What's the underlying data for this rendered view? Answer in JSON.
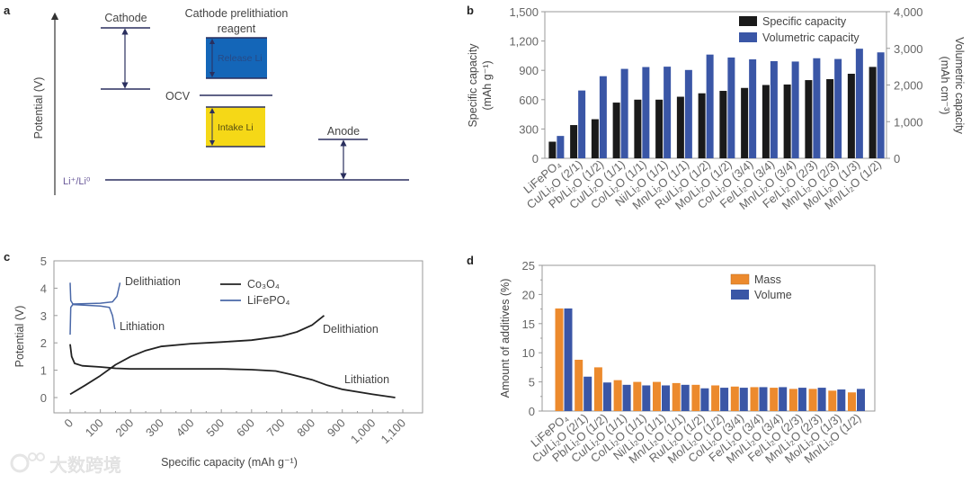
{
  "panel_labels": [
    "a",
    "b",
    "c",
    "d"
  ],
  "watermark": "大数跨境",
  "colors": {
    "black_bar": "#1a1a1a",
    "blue_bar": "#3a56a6",
    "orange_bar": "#ec8a2d",
    "release_box": "#1466b8",
    "intake_box": "#f5d817",
    "arrow": "#2a2f5e",
    "lifepo4_line": "#4a68a8",
    "right_axis": "#5a6fa8"
  },
  "diagram_a": {
    "ylabel": "Potential (V)",
    "cathode": "Cathode",
    "reagent_line1": "Cathode prelithiation",
    "reagent_line2": "reagent",
    "release": "Release Li",
    "intake": "Intake Li",
    "ocv": "OCV",
    "anode": "Anode",
    "reference": "Li⁺/Li⁰"
  },
  "chart_data": [
    {
      "panel": "b",
      "type": "bar",
      "categories": [
        "LiFePO₄",
        "Cu/Li₂O (2/1)",
        "Pb/Li₂O (1/2)",
        "Cu/Li₂O (1/1)",
        "Co/Li₂O (1/1)",
        "Ni/Li₂O (1/1)",
        "Mn/Li₂O (1/1)",
        "Ru/Li₂O (1/2)",
        "Mo/Li₂O (1/2)",
        "Co/Li₂O (3/4)",
        "Fe/Li₂O (3/4)",
        "Mn/Li₂O (3/4)",
        "Fe/Li₂O (2/3)",
        "Mn/Li₂O (2/3)",
        "Mo/Li₂O (1/3)",
        "Mn/Li₂O (1/2)"
      ],
      "series": [
        {
          "name": "Specific capacity",
          "axis": "left",
          "values": [
            170,
            340,
            400,
            570,
            600,
            600,
            630,
            665,
            690,
            720,
            750,
            755,
            800,
            810,
            865,
            935
          ]
        },
        {
          "name": "Volumetric capacity",
          "axis": "right",
          "values": [
            610,
            1850,
            2240,
            2440,
            2490,
            2500,
            2410,
            2830,
            2750,
            2700,
            2650,
            2640,
            2730,
            2710,
            2990,
            2890
          ]
        }
      ],
      "ylabel": "Specific capacity (mAh g⁻¹)",
      "ylabel_line1": "Specific capacity",
      "ylabel_line2": "(mAh g⁻¹)",
      "ylim": [
        0,
        1500
      ],
      "yticks": [
        "0",
        "300",
        "600",
        "900",
        "1,200",
        "1,500"
      ],
      "y2label_line1": "Volumetric capacity",
      "y2label_line2": "(mAh cm⁻³)",
      "y2lim": [
        0,
        4000
      ],
      "y2ticks": [
        "0",
        "1,000",
        "2,000",
        "3,000",
        "4,000"
      ],
      "legend": "top-right"
    },
    {
      "panel": "c",
      "type": "line",
      "xlabel": "Specific capacity (mAh g⁻¹)",
      "ylabel": "Potential (V)",
      "xlim": [
        0,
        1100
      ],
      "ylim": [
        0,
        5
      ],
      "xticks": [
        "0",
        "100",
        "200",
        "300",
        "400",
        "500",
        "600",
        "700",
        "800",
        "900",
        "1,000",
        "1,100"
      ],
      "yticks": [
        "0",
        "1",
        "2",
        "3",
        "4",
        "5"
      ],
      "legend": [
        "Co₃O₄",
        "LiFePO₄"
      ],
      "annotations": [
        "Delithiation",
        "Lithiation",
        "Delithiation",
        "Lithiation"
      ],
      "series": [
        {
          "name": "Co₃O₄ delithiation",
          "color": "#222222",
          "points": [
            [
              0,
              0.12
            ],
            [
              50,
              0.45
            ],
            [
              100,
              0.8
            ],
            [
              150,
              1.2
            ],
            [
              200,
              1.5
            ],
            [
              250,
              1.72
            ],
            [
              300,
              1.87
            ],
            [
              400,
              1.97
            ],
            [
              500,
              2.03
            ],
            [
              600,
              2.1
            ],
            [
              700,
              2.25
            ],
            [
              750,
              2.4
            ],
            [
              800,
              2.65
            ],
            [
              840,
              3.0
            ]
          ]
        },
        {
          "name": "Co₃O₄ lithiation",
          "color": "#222222",
          "points": [
            [
              0,
              1.95
            ],
            [
              5,
              1.5
            ],
            [
              15,
              1.25
            ],
            [
              40,
              1.16
            ],
            [
              100,
              1.12
            ],
            [
              150,
              1.07
            ],
            [
              200,
              1.05
            ],
            [
              400,
              1.05
            ],
            [
              500,
              1.05
            ],
            [
              600,
              1.02
            ],
            [
              680,
              0.97
            ],
            [
              730,
              0.85
            ],
            [
              800,
              0.65
            ],
            [
              850,
              0.45
            ],
            [
              900,
              0.3
            ],
            [
              1000,
              0.12
            ],
            [
              1075,
              0.0
            ]
          ]
        },
        {
          "name": "LiFePO₄ delithiation",
          "color": "#4a68a8",
          "points": [
            [
              0,
              2.3
            ],
            [
              2,
              3.3
            ],
            [
              10,
              3.42
            ],
            [
              100,
              3.45
            ],
            [
              140,
              3.5
            ],
            [
              155,
              3.7
            ],
            [
              165,
              4.2
            ]
          ]
        },
        {
          "name": "LiFePO₄ lithiation",
          "color": "#4a68a8",
          "points": [
            [
              0,
              4.2
            ],
            [
              2,
              3.55
            ],
            [
              10,
              3.4
            ],
            [
              100,
              3.35
            ],
            [
              130,
              3.3
            ],
            [
              140,
              3.0
            ],
            [
              148,
              2.5
            ]
          ]
        }
      ]
    },
    {
      "panel": "d",
      "type": "bar",
      "categories": [
        "LiFePO₄",
        "Cu/Li₂O (2/1)",
        "Pb/Li₂O (1/2)",
        "Cu/Li₂O (1/1)",
        "Co/Li₂O (1/1)",
        "Ni/Li₂O (1/1)",
        "Mn/Li₂O (1/1)",
        "Ru/Li₂O (1/2)",
        "Mo/Li₂O (1/2)",
        "Co/Li₂O (3/4)",
        "Fe/Li₂O (3/4)",
        "Mn/Li₂O (3/4)",
        "Fe/Li₂O (2/3)",
        "Mn/Li₂O (2/3)",
        "Mo/Li₂O (1/3)",
        "Mn/Li₂O (1/2)"
      ],
      "series": [
        {
          "name": "Mass",
          "values": [
            17.6,
            8.8,
            7.5,
            5.3,
            5.0,
            5.0,
            4.8,
            4.5,
            4.4,
            4.2,
            4.1,
            4.0,
            3.8,
            3.8,
            3.5,
            3.2
          ]
        },
        {
          "name": "Volume",
          "values": [
            17.6,
            5.9,
            4.9,
            4.5,
            4.4,
            4.4,
            4.5,
            3.9,
            4.0,
            4.0,
            4.1,
            4.1,
            4.0,
            4.0,
            3.7,
            3.8
          ]
        }
      ],
      "ylabel": "Amount of additives (%)",
      "ylim": [
        0,
        25
      ],
      "yticks": [
        "0",
        "5",
        "10",
        "15",
        "20",
        "25"
      ],
      "legend": "top-right"
    }
  ]
}
